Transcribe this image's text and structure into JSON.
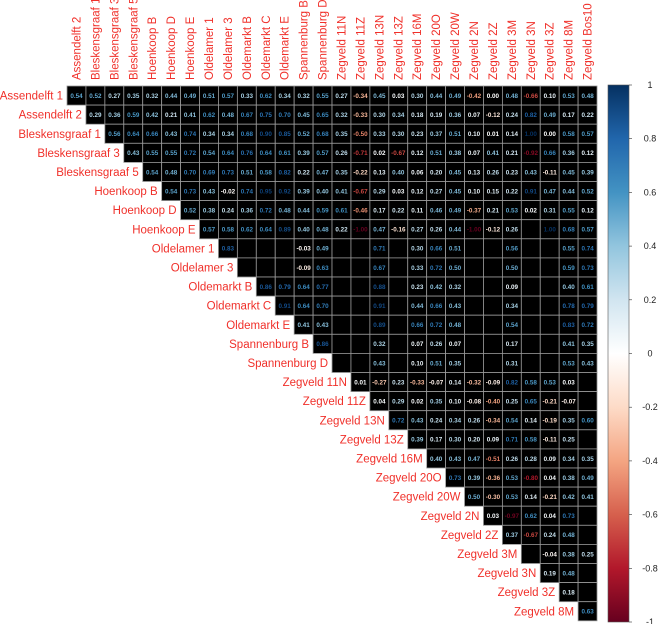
{
  "chart_data": {
    "type": "heatmap",
    "subtype": "correlation-matrix-upper",
    "row_labels": [
      "Assendelft 1",
      "Assendelft 2",
      "Bleskensgraaf 1",
      "Bleskensgraaf 3",
      "Bleskensgraaf 5",
      "Hoenkoop B",
      "Hoenkoop D",
      "Hoenkoop E",
      "Oldelamer 1",
      "Oldelamer 3",
      "Oldemarkt B",
      "Oldemarkt C",
      "Oldemarkt E",
      "Spannenburg B",
      "Spannenburg D",
      "Zegveld 11N",
      "Zegveld 11Z",
      "Zegveld 13N",
      "Zegveld 13Z",
      "Zegveld 16M",
      "Zegveld 20O",
      "Zegveld 20W",
      "Zegveld 2N",
      "Zegveld 2Z",
      "Zegveld 3M",
      "Zegveld 3N",
      "Zegveld 3Z",
      "Zegveld 8M"
    ],
    "col_labels": [
      "Assendelft 2",
      "Bleskensgraaf 1",
      "Bleskensgraaf 3",
      "Bleskensgraaf 5",
      "Hoenkoop B",
      "Hoenkoop D",
      "Hoenkoop E",
      "Oldelamer 1",
      "Oldelamer 3",
      "Oldemarkt B",
      "Oldemarkt C",
      "Oldemarkt E",
      "Spannenburg B",
      "Spannenburg D",
      "Zegveld 11N",
      "Zegveld 11Z",
      "Zegveld 13N",
      "Zegveld 13Z",
      "Zegveld 16M",
      "Zegveld 20O",
      "Zegveld 20W",
      "Zegveld 2N",
      "Zegveld 2Z",
      "Zegveld 3M",
      "Zegveld 3N",
      "Zegveld 3Z",
      "Zegveld 8M",
      "Zegveld Bos10"
    ],
    "note_row_start": "row i begins at column i; null = blank cell",
    "values": [
      [
        0.54,
        0.52,
        0.27,
        0.35,
        0.32,
        0.44,
        0.49,
        0.51,
        0.57,
        0.33,
        0.62,
        0.34,
        0.32,
        0.55,
        0.27,
        -0.34,
        0.45,
        0.03,
        0.3,
        0.44,
        0.49,
        -0.42,
        0.0,
        0.48,
        -0.66,
        0.1,
        0.53,
        0.48
      ],
      [
        0.29,
        0.36,
        0.59,
        0.42,
        0.21,
        0.41,
        0.62,
        0.48,
        0.67,
        0.75,
        0.7,
        0.45,
        0.65,
        0.32,
        -0.33,
        0.3,
        0.34,
        0.18,
        0.19,
        0.36,
        0.07,
        -0.12,
        0.24,
        0.82,
        0.49,
        0.17,
        0.22
      ],
      [
        0.56,
        0.64,
        0.66,
        0.43,
        0.74,
        0.34,
        0.34,
        0.68,
        0.9,
        0.85,
        0.52,
        0.68,
        0.35,
        -0.5,
        0.33,
        0.3,
        0.23,
        0.37,
        0.51,
        0.1,
        0.01,
        0.14,
        1.0,
        0.0,
        0.58,
        0.57
      ],
      [
        0.43,
        0.55,
        0.55,
        0.72,
        0.54,
        0.64,
        0.76,
        0.64,
        0.61,
        0.39,
        0.57,
        0.26,
        -0.71,
        0.02,
        -0.67,
        0.12,
        0.51,
        0.38,
        0.07,
        0.41,
        0.21,
        -0.92,
        0.66,
        0.36,
        0.12
      ],
      [
        0.54,
        0.48,
        0.7,
        0.69,
        0.73,
        0.51,
        0.58,
        0.82,
        0.22,
        0.47,
        0.35,
        -0.22,
        0.13,
        0.4,
        0.06,
        0.2,
        0.45,
        0.13,
        0.26,
        0.23,
        0.43,
        -0.11,
        0.45,
        0.39
      ],
      [
        0.54,
        0.73,
        0.43,
        -0.02,
        0.74,
        0.95,
        0.92,
        0.39,
        0.4,
        0.41,
        -0.67,
        0.29,
        0.03,
        0.12,
        0.27,
        0.45,
        0.1,
        0.15,
        0.22,
        0.91,
        0.47,
        0.44,
        0.52
      ],
      [
        0.52,
        0.38,
        0.24,
        0.36,
        0.72,
        0.48,
        0.44,
        0.59,
        0.61,
        -0.46,
        0.17,
        0.22,
        0.11,
        0.46,
        0.49,
        -0.37,
        0.21,
        0.53,
        0.02,
        0.31,
        0.55,
        0.12
      ],
      [
        0.57,
        0.58,
        0.62,
        0.64,
        0.89,
        0.4,
        0.48,
        0.22,
        -1.0,
        0.47,
        -0.16,
        0.27,
        0.26,
        0.44,
        -1.0,
        -0.12,
        0.26,
        null,
        1.0,
        0.68,
        0.57
      ],
      [
        0.83,
        null,
        null,
        null,
        -0.03,
        0.49,
        null,
        null,
        0.71,
        null,
        0.3,
        0.66,
        0.51,
        null,
        null,
        0.56,
        null,
        null,
        0.55,
        0.74
      ],
      [
        null,
        null,
        null,
        -0.09,
        0.63,
        null,
        null,
        0.67,
        null,
        0.33,
        0.72,
        0.5,
        null,
        null,
        0.5,
        null,
        null,
        0.59,
        0.73
      ],
      [
        0.86,
        0.79,
        0.64,
        0.77,
        null,
        null,
        0.88,
        null,
        0.23,
        0.42,
        0.32,
        null,
        null,
        0.09,
        null,
        null,
        0.4,
        0.61
      ],
      [
        0.91,
        0.64,
        0.7,
        null,
        null,
        0.91,
        null,
        0.44,
        0.66,
        0.43,
        null,
        null,
        0.34,
        null,
        null,
        0.78,
        0.79
      ],
      [
        0.41,
        0.43,
        null,
        null,
        0.89,
        null,
        0.66,
        0.72,
        0.48,
        null,
        null,
        0.54,
        null,
        null,
        0.83,
        0.72
      ],
      [
        0.86,
        null,
        null,
        0.32,
        null,
        0.07,
        0.26,
        0.07,
        null,
        null,
        0.17,
        null,
        null,
        0.41,
        0.35
      ],
      [
        null,
        null,
        0.43,
        null,
        0.1,
        0.51,
        0.35,
        null,
        null,
        0.31,
        null,
        null,
        0.53,
        0.43
      ],
      [
        0.01,
        -0.27,
        0.23,
        -0.33,
        -0.07,
        0.14,
        -0.32,
        -0.09,
        0.82,
        0.58,
        0.53,
        0.03,
        null
      ],
      [
        0.04,
        0.29,
        0.02,
        0.35,
        0.1,
        -0.08,
        -0.4,
        0.25,
        0.65,
        -0.21,
        -0.07,
        null
      ],
      [
        0.72,
        0.43,
        0.24,
        0.34,
        0.26,
        -0.34,
        0.54,
        0.14,
        -0.19,
        0.35,
        0.6
      ],
      [
        0.39,
        0.17,
        0.3,
        0.2,
        0.09,
        0.71,
        0.58,
        -0.11,
        0.25,
        null
      ],
      [
        0.4,
        0.43,
        0.47,
        -0.51,
        0.26,
        0.28,
        0.09,
        0.34,
        0.35
      ],
      [
        0.73,
        0.39,
        -0.36,
        0.53,
        -0.8,
        0.04,
        0.38,
        0.49
      ],
      [
        0.5,
        -0.3,
        0.53,
        0.14,
        -0.21,
        0.42,
        0.41
      ],
      [
        0.03,
        -0.97,
        0.62,
        0.04,
        0.73,
        null
      ],
      [
        0.37,
        -0.67,
        0.24,
        0.48,
        null
      ],
      [
        null,
        -0.04,
        0.38,
        0.25
      ],
      [
        0.19,
        0.48,
        null
      ],
      [
        0.18,
        null
      ],
      [
        0.63
      ]
    ],
    "colorbar": {
      "range": [
        -1,
        1
      ],
      "ticks": [
        "1",
        "0.8",
        "0.6",
        "0.4",
        "0.2",
        "0",
        "-0.2",
        "-0.4",
        "-0.6",
        "-0.8",
        "-1"
      ],
      "palette": [
        "#67001F",
        "#B2182B",
        "#D6604D",
        "#F4A582",
        "#FDDBC7",
        "#FFFFFF",
        "#D1E5F0",
        "#92C5DE",
        "#4393C3",
        "#2166AC",
        "#053061"
      ]
    },
    "cell_background": "#000000",
    "label_color": "#F0302A",
    "grid": true
  }
}
